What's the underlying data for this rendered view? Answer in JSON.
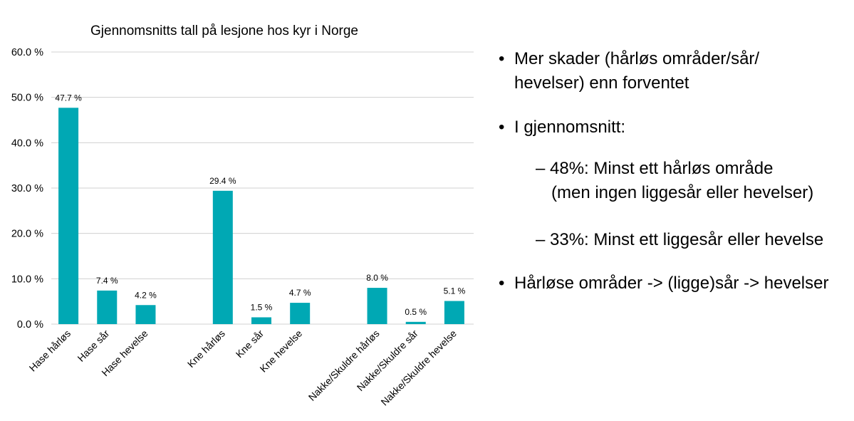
{
  "chart_data": {
    "type": "bar",
    "title": "Gjennomsnitts tall på lesjone hos kyr i Norge",
    "xlabel": "",
    "ylabel": "",
    "ylim": [
      0,
      60
    ],
    "ytick_values": [
      0,
      10,
      20,
      30,
      40,
      50,
      60
    ],
    "ytick_labels": [
      "0.0 %",
      "10.0 %",
      "20.0 %",
      "30.0 %",
      "40.0 %",
      "50.0 %",
      "60.0 %"
    ],
    "grid": true,
    "legend": "none",
    "bar_color": "#00A8B4",
    "categories": [
      "Hase hårløs",
      "Hase sår",
      "Hase hevelse",
      "",
      "Kne hårløs",
      "Kne sår",
      "Kne hevelse",
      "",
      "Nakke/Skuldre hårløs",
      "Nakke/Skuldre sår",
      "Nakke/Skuldre hevelse"
    ],
    "values": [
      47.7,
      7.4,
      4.2,
      null,
      29.4,
      1.5,
      4.7,
      null,
      8.0,
      0.5,
      5.1
    ],
    "data_labels": [
      "47.7 %",
      "7.4 %",
      "4.2 %",
      "",
      "29.4 %",
      "1.5 %",
      "4.7 %",
      "",
      "8.0 %",
      "0.5 %",
      "5.1 %"
    ]
  },
  "bullets": {
    "b1_line1": "Mer skader (hårløs områder/sår/",
    "b1_line2": "hevelser) enn forventet",
    "b2": "I gjennomsnitt:",
    "dash1_line1": "– 48%: Minst ett hårløs område",
    "dash1_line2": "(men ingen liggesår eller hevelser)",
    "dash2": "– 33%: Minst ett liggesår eller hevelse",
    "b3": "Hårløse områder -> (ligge)sår -> hevelser"
  }
}
